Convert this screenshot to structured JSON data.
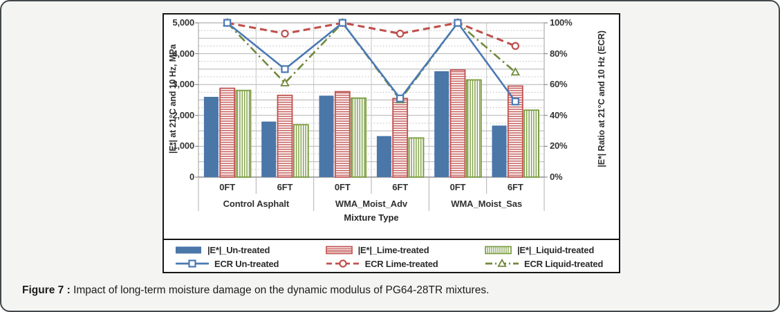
{
  "panel": {
    "background": "#f4f4f2",
    "border_color": "#43484a"
  },
  "caption": {
    "label": "Figure 7 :",
    "text": " Impact of long-term moisture damage on the dynamic modulus of PG64-28TR mixtures."
  },
  "chart_data": {
    "type": "bar+line combo (clustered bars on primary axis, ECR lines on secondary axis)",
    "group_labels": [
      "Control Asphalt",
      "WMA_Moist_Adv",
      "WMA_Moist_Sas"
    ],
    "categories": [
      "0FT",
      "6FT",
      "0FT",
      "6FT",
      "0FT",
      "6FT"
    ],
    "xlabel": "Mixture Type",
    "left_axis": {
      "title": "|E*| at 21°C and 10 Hz, MPa",
      "min": 0,
      "max": 5000,
      "major_step": 1000,
      "grid_solid_step": 500,
      "grid_dotted_step": 250,
      "ticks": [
        "0",
        "1,000",
        "2,000",
        "3,000",
        "4,000",
        "5,000"
      ]
    },
    "right_axis": {
      "title": "|E*| Ratio at 21°C and 10 Hz (ECR)",
      "min": 0,
      "max": 100,
      "major_step": 20,
      "ticks": [
        "0%",
        "20%",
        "40%",
        "60%",
        "80%",
        "100%"
      ]
    },
    "series_bars": [
      {
        "name": "|E*|_Un-treated",
        "style": "solid",
        "color": "#4a76a8",
        "values": [
          2600,
          1800,
          2640,
          1330,
          3430,
          1670
        ]
      },
      {
        "name": "|E*|_Lime-treated",
        "style": "hstripe",
        "color": "#c0504d",
        "values": [
          2880,
          2650,
          2770,
          2550,
          3470,
          2950
        ]
      },
      {
        "name": "|E*|_Liquid-treated",
        "style": "vstripe",
        "color": "#7a9c3e",
        "values": [
          2810,
          1700,
          2560,
          1270,
          3150,
          2170
        ]
      }
    ],
    "series_lines": [
      {
        "name": "ECR Un-treated",
        "color": "#4a79b4",
        "dash": "solid",
        "marker": "square",
        "values": [
          100,
          70,
          100,
          51,
          100,
          49
        ]
      },
      {
        "name": "ECR Lime-treated",
        "color": "#c0504d",
        "dash": "dashed",
        "marker": "circle",
        "values": [
          100,
          93,
          100,
          93,
          100,
          85
        ]
      },
      {
        "name": "ECR Liquid-treated",
        "color": "#71893a",
        "dash": "dashdot",
        "marker": "triangle",
        "values": [
          100,
          61,
          100,
          50,
          100,
          68
        ]
      }
    ],
    "legend_position": "bottom box, 2 rows x 3 columns",
    "grid": "horizontal solid every 500 MPa, dotted every 250 MPa; vertical light lines at category boundaries"
  }
}
